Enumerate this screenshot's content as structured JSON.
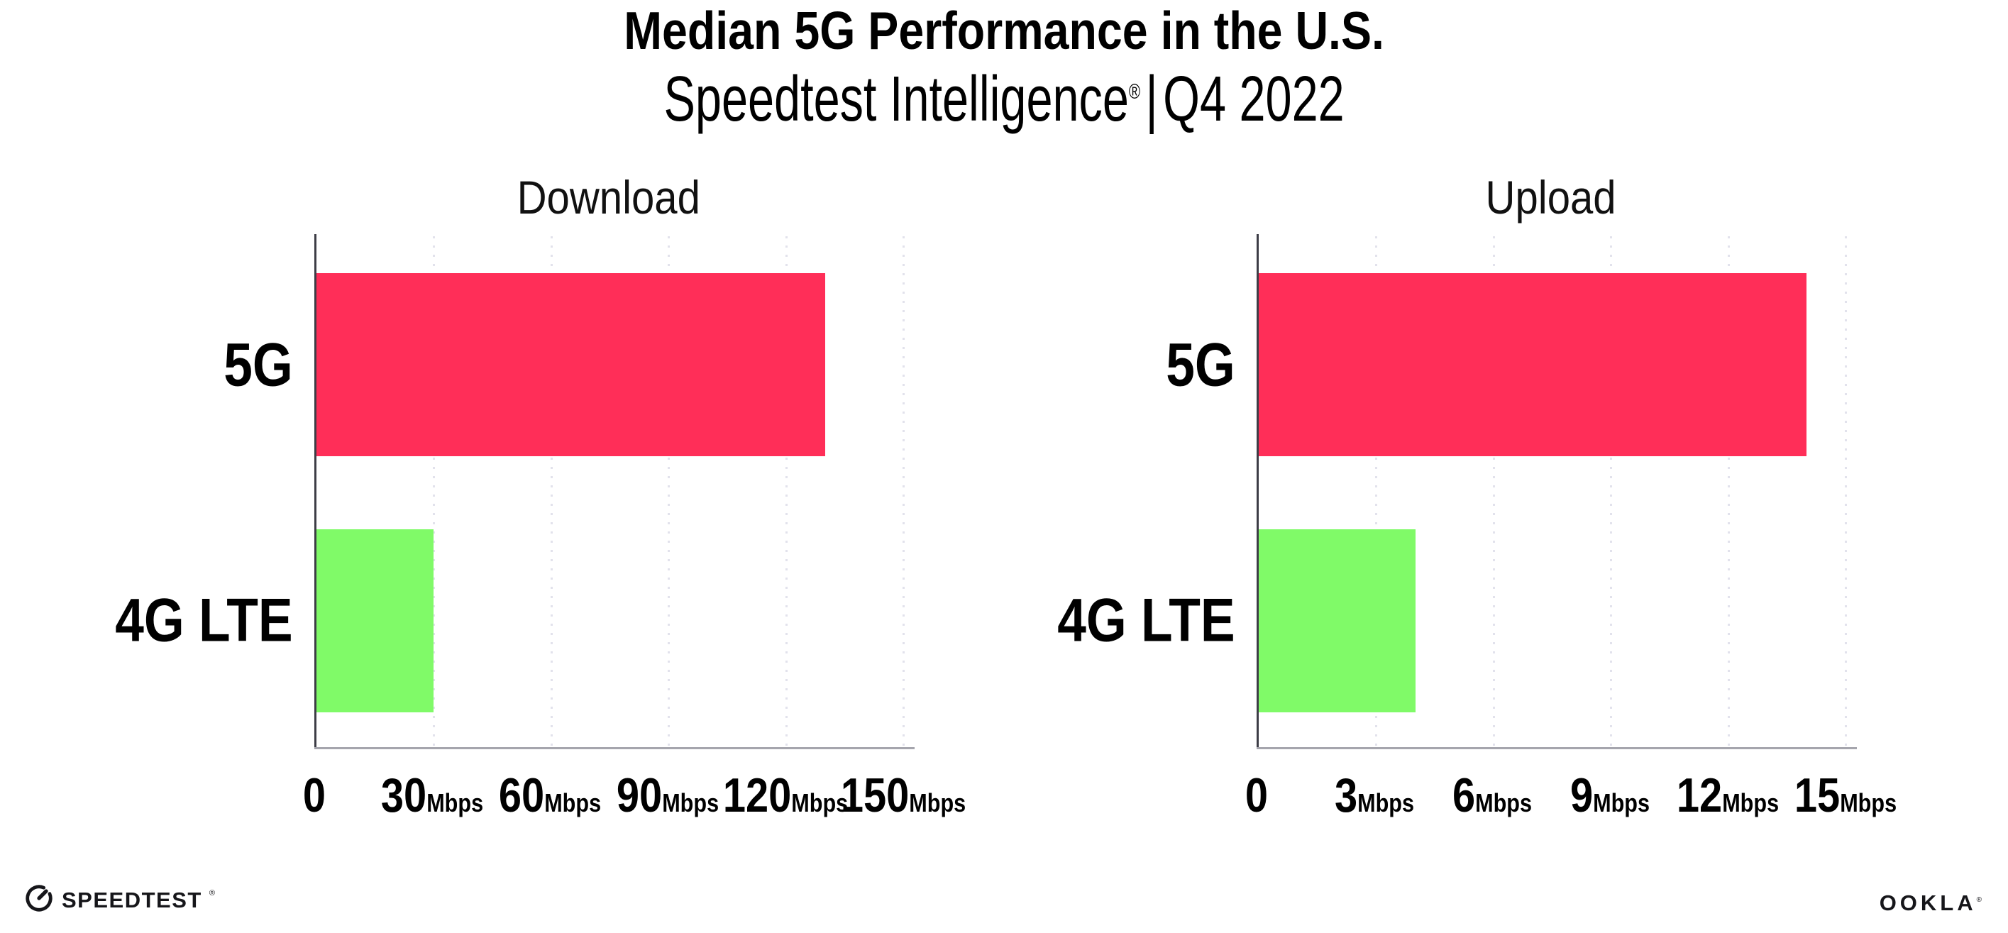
{
  "header": {
    "title": "Median 5G Performance in the U.S.",
    "subtitle": {
      "brand": "Speedtest Intelligence",
      "mark": "®",
      "divider": "|",
      "period": "Q4 2022"
    }
  },
  "chart_data": [
    {
      "type": "bar",
      "orientation": "horizontal",
      "title": "Download",
      "categories": [
        "5G",
        "4G LTE"
      ],
      "values": [
        130,
        30
      ],
      "unit": "Mbps",
      "xlim": [
        0,
        150
      ],
      "ticks": [
        0,
        30,
        60,
        90,
        120,
        150
      ],
      "tick_labels": [
        {
          "num": "0",
          "unit": ""
        },
        {
          "num": "30",
          "unit": "Mbps"
        },
        {
          "num": "60",
          "unit": "Mbps"
        },
        {
          "num": "90",
          "unit": "Mbps"
        },
        {
          "num": "120",
          "unit": "Mbps"
        },
        {
          "num": "150",
          "unit": "Mbps"
        }
      ],
      "colors": [
        "#ff2e58",
        "#80fa68"
      ],
      "grid": "dotted-vertical",
      "legend": "none"
    },
    {
      "type": "bar",
      "orientation": "horizontal",
      "title": "Upload",
      "categories": [
        "5G",
        "4G LTE"
      ],
      "values": [
        14,
        4
      ],
      "unit": "Mbps",
      "xlim": [
        0,
        15
      ],
      "ticks": [
        0,
        3,
        6,
        9,
        12,
        15
      ],
      "tick_labels": [
        {
          "num": "0",
          "unit": ""
        },
        {
          "num": "3",
          "unit": "Mbps"
        },
        {
          "num": "6",
          "unit": "Mbps"
        },
        {
          "num": "9",
          "unit": "Mbps"
        },
        {
          "num": "12",
          "unit": "Mbps"
        },
        {
          "num": "15",
          "unit": "Mbps"
        }
      ],
      "colors": [
        "#ff2e58",
        "#80fa68"
      ],
      "grid": "dotted-vertical",
      "legend": "none"
    }
  ],
  "footer": {
    "speedtest_label": "SPEEDTEST",
    "speedtest_mark": "®",
    "ookla_label": "OOKLA",
    "ookla_mark": "®"
  },
  "colors": {
    "bar_5g": "#ff2e58",
    "bar_4g_lte": "#80fa68",
    "gridline": "#e2e2ec",
    "y_axis_spine": "#3d3d46",
    "x_axis_spine": "#a5a5ad",
    "text": "#000000"
  }
}
